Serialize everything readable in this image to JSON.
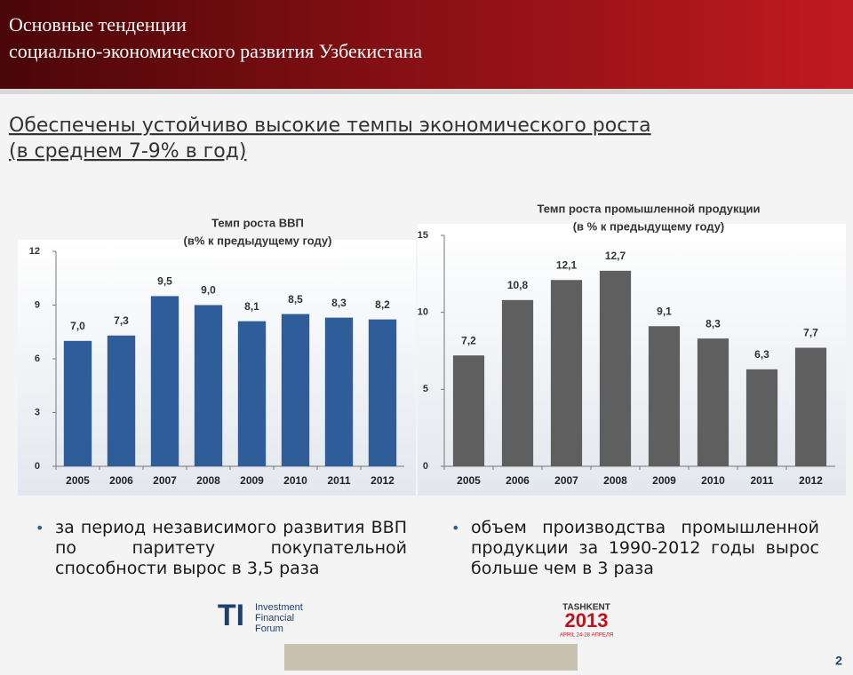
{
  "header": {
    "title_line1": "Основные тенденции",
    "title_line2": "социально-экономического развития Узбекистана"
  },
  "subtitle": {
    "line1": "Обеспечены устойчиво высокие темпы экономического роста",
    "line2": "(в среднем 7-9% в год)"
  },
  "chart_data": [
    {
      "type": "bar",
      "title": "Темп роста ВВП",
      "subtitle": "(в% к предыдущему году)",
      "categories": [
        "2005",
        "2006",
        "2007",
        "2008",
        "2009",
        "2010",
        "2011",
        "2012"
      ],
      "values": [
        7.0,
        7.3,
        9.5,
        9.0,
        8.1,
        8.5,
        8.3,
        8.2
      ],
      "value_labels": [
        "7,0",
        "7,3",
        "9,5",
        "9,0",
        "8,1",
        "8,5",
        "8,3",
        "8,2"
      ],
      "color": "#2e5d99",
      "ylim": [
        0,
        12
      ],
      "yticks": [
        0,
        3,
        6,
        9,
        12
      ],
      "grid": false
    },
    {
      "type": "bar",
      "title": "Темп роста промышленной продукции",
      "subtitle": "(в % к предыдущему году)",
      "categories": [
        "2005",
        "2006",
        "2007",
        "2008",
        "2009",
        "2010",
        "2011",
        "2012"
      ],
      "values": [
        7.2,
        10.8,
        12.1,
        12.7,
        9.1,
        8.3,
        6.3,
        7.7
      ],
      "value_labels": [
        "7,2",
        "10,8",
        "12,1",
        "12,7",
        "9,1",
        "8,3",
        "6,3",
        "7,7"
      ],
      "color": "#5f5f5f",
      "ylim": [
        0,
        15
      ],
      "yticks": [
        0,
        5,
        10,
        15
      ],
      "grid": false
    }
  ],
  "bullets": [
    "за период независимого развития ВВП по паритету покупательной способности вырос в 3,5 раза",
    "объем производства промышленной продукции за 1990-2012 годы вырос больше чем в 3 раза"
  ],
  "footer": {
    "logo_mark": "TI",
    "logo_line1": "Investment",
    "logo_line2": "Financial",
    "logo_line3": "Forum",
    "event_city": "TASHKENT",
    "event_year": "2013",
    "event_dates": "APRIL 24-28 АПРЕЛЯ",
    "page_number": "2"
  }
}
